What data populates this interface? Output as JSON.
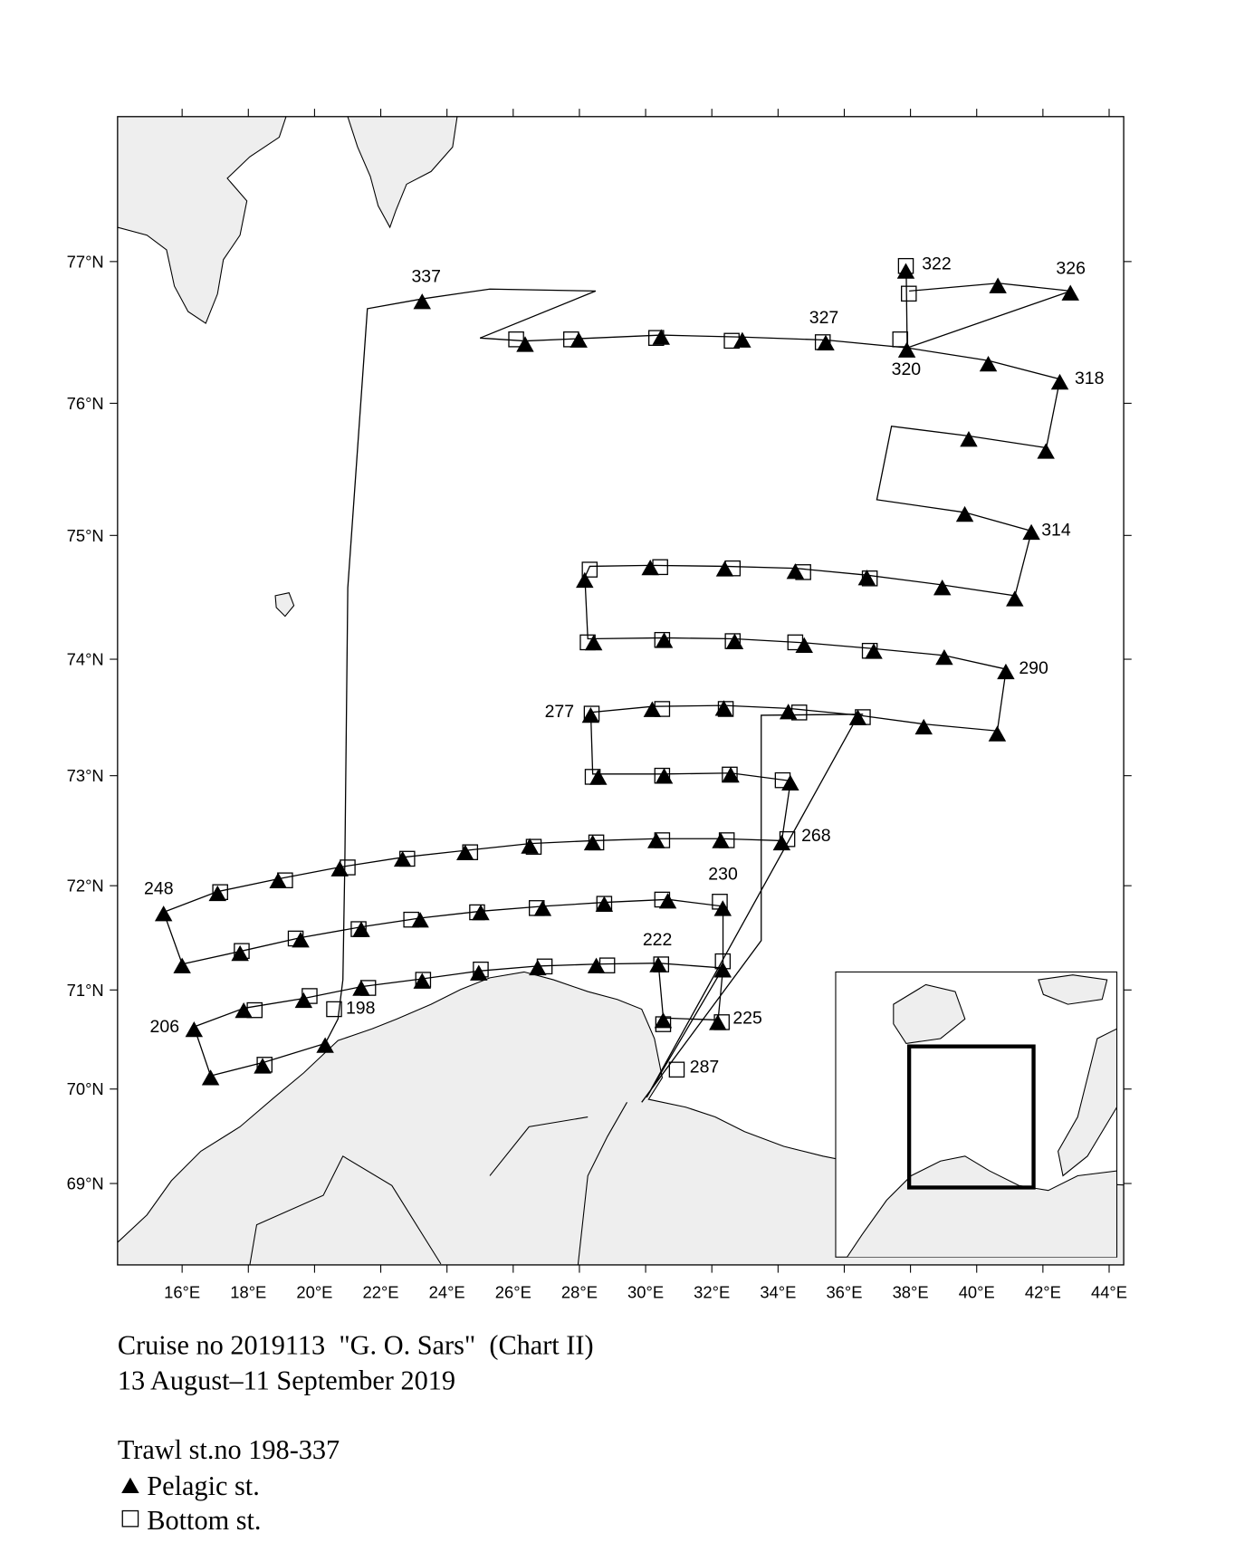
{
  "map": {
    "type": "map",
    "xlim": [
      14.05,
      44.44
    ],
    "ylim": [
      68.1,
      77.95
    ],
    "xticks": [
      {
        "value": 16,
        "label": "16°E"
      },
      {
        "value": 18,
        "label": "18°E"
      },
      {
        "value": 20,
        "label": "20°E"
      },
      {
        "value": 22,
        "label": "22°E"
      },
      {
        "value": 24,
        "label": "24°E"
      },
      {
        "value": 26,
        "label": "26°E"
      },
      {
        "value": 28,
        "label": "28°E"
      },
      {
        "value": 30,
        "label": "30°E"
      },
      {
        "value": 32,
        "label": "32°E"
      },
      {
        "value": 34,
        "label": "34°E"
      },
      {
        "value": 36,
        "label": "36°E"
      },
      {
        "value": 38,
        "label": "38°E"
      },
      {
        "value": 40,
        "label": "40°E"
      },
      {
        "value": 42,
        "label": "42°E"
      },
      {
        "value": 44,
        "label": "44°E"
      }
    ],
    "yticks": [
      {
        "value": 69,
        "label": "69°N"
      },
      {
        "value": 70,
        "label": "70°N"
      },
      {
        "value": 71,
        "label": "71°N"
      },
      {
        "value": 72,
        "label": "72°N"
      },
      {
        "value": 73,
        "label": "73°N"
      },
      {
        "value": 74,
        "label": "74°N"
      },
      {
        "value": 75,
        "label": "75°N"
      },
      {
        "value": 76,
        "label": "76°N"
      },
      {
        "value": 77,
        "label": "77°N"
      }
    ],
    "pelagic": [
      [
        23.25,
        76.72
      ],
      [
        26.36,
        76.42
      ],
      [
        27.98,
        76.45
      ],
      [
        30.47,
        76.47
      ],
      [
        32.92,
        76.45
      ],
      [
        35.44,
        76.43
      ],
      [
        37.89,
        76.38
      ],
      [
        40.35,
        76.28
      ],
      [
        42.51,
        76.15
      ],
      [
        37.86,
        76.93
      ],
      [
        40.64,
        76.83
      ],
      [
        42.83,
        76.78
      ],
      [
        39.76,
        75.73
      ],
      [
        42.09,
        75.64
      ],
      [
        39.64,
        75.16
      ],
      [
        41.65,
        75.02
      ],
      [
        28.16,
        74.64
      ],
      [
        30.14,
        74.74
      ],
      [
        32.39,
        74.73
      ],
      [
        34.52,
        74.71
      ],
      [
        36.68,
        74.66
      ],
      [
        38.96,
        74.58
      ],
      [
        41.15,
        74.49
      ],
      [
        28.43,
        74.13
      ],
      [
        30.56,
        74.15
      ],
      [
        32.69,
        74.14
      ],
      [
        34.79,
        74.11
      ],
      [
        36.89,
        74.06
      ],
      [
        39.02,
        74.01
      ],
      [
        40.88,
        73.89
      ],
      [
        28.34,
        73.52
      ],
      [
        30.2,
        73.57
      ],
      [
        32.36,
        73.58
      ],
      [
        34.31,
        73.55
      ],
      [
        36.41,
        73.5
      ],
      [
        38.4,
        73.42
      ],
      [
        40.62,
        73.36
      ],
      [
        28.57,
        72.98
      ],
      [
        30.56,
        72.99
      ],
      [
        32.57,
        73.0
      ],
      [
        34.37,
        72.93
      ],
      [
        34.11,
        72.39
      ],
      [
        32.27,
        72.41
      ],
      [
        30.32,
        72.41
      ],
      [
        28.4,
        72.39
      ],
      [
        26.5,
        72.36
      ],
      [
        24.55,
        72.3
      ],
      [
        22.66,
        72.24
      ],
      [
        20.76,
        72.15
      ],
      [
        18.9,
        72.04
      ],
      [
        17.07,
        71.92
      ],
      [
        15.44,
        71.73
      ],
      [
        16.0,
        71.23
      ],
      [
        17.75,
        71.35
      ],
      [
        19.58,
        71.48
      ],
      [
        21.41,
        71.58
      ],
      [
        23.19,
        71.67
      ],
      [
        25.02,
        71.74
      ],
      [
        26.89,
        71.78
      ],
      [
        28.75,
        71.82
      ],
      [
        30.67,
        71.85
      ],
      [
        32.33,
        71.78
      ],
      [
        32.33,
        71.19
      ],
      [
        30.38,
        71.24
      ],
      [
        28.51,
        71.23
      ],
      [
        26.74,
        71.21
      ],
      [
        24.96,
        71.16
      ],
      [
        23.25,
        71.08
      ],
      [
        21.41,
        71.01
      ],
      [
        19.67,
        70.89
      ],
      [
        17.86,
        70.79
      ],
      [
        16.36,
        70.6
      ],
      [
        20.32,
        70.44
      ],
      [
        16.86,
        70.11
      ],
      [
        18.43,
        70.23
      ],
      [
        30.53,
        70.69
      ],
      [
        32.18,
        70.67
      ]
    ],
    "bottom": [
      [
        26.09,
        76.46
      ],
      [
        27.75,
        76.46
      ],
      [
        30.32,
        76.47
      ],
      [
        32.6,
        76.45
      ],
      [
        35.35,
        76.44
      ],
      [
        37.69,
        76.46
      ],
      [
        37.86,
        76.97
      ],
      [
        37.95,
        76.78
      ],
      [
        28.31,
        74.73
      ],
      [
        30.44,
        74.75
      ],
      [
        32.63,
        74.74
      ],
      [
        34.76,
        74.71
      ],
      [
        36.77,
        74.66
      ],
      [
        28.25,
        74.14
      ],
      [
        30.5,
        74.16
      ],
      [
        32.63,
        74.15
      ],
      [
        34.52,
        74.14
      ],
      [
        36.77,
        74.07
      ],
      [
        28.37,
        73.54
      ],
      [
        30.5,
        73.58
      ],
      [
        32.42,
        73.58
      ],
      [
        34.64,
        73.55
      ],
      [
        36.56,
        73.51
      ],
      [
        28.4,
        72.99
      ],
      [
        30.5,
        73.0
      ],
      [
        32.54,
        73.01
      ],
      [
        34.14,
        72.96
      ],
      [
        34.28,
        72.43
      ],
      [
        32.45,
        72.42
      ],
      [
        30.5,
        72.42
      ],
      [
        28.51,
        72.4
      ],
      [
        26.62,
        72.36
      ],
      [
        24.7,
        72.31
      ],
      [
        22.8,
        72.25
      ],
      [
        21.0,
        72.17
      ],
      [
        19.11,
        72.05
      ],
      [
        17.15,
        71.94
      ],
      [
        17.8,
        71.38
      ],
      [
        19.43,
        71.5
      ],
      [
        21.33,
        71.59
      ],
      [
        22.92,
        71.68
      ],
      [
        24.91,
        71.75
      ],
      [
        26.71,
        71.79
      ],
      [
        28.75,
        71.83
      ],
      [
        30.5,
        71.87
      ],
      [
        32.24,
        71.85
      ],
      [
        32.33,
        71.28
      ],
      [
        30.47,
        71.25
      ],
      [
        28.84,
        71.24
      ],
      [
        26.95,
        71.23
      ],
      [
        25.02,
        71.2
      ],
      [
        23.28,
        71.1
      ],
      [
        21.62,
        71.02
      ],
      [
        19.85,
        70.94
      ],
      [
        18.19,
        70.8
      ],
      [
        20.59,
        70.81
      ],
      [
        18.49,
        70.25
      ],
      [
        30.53,
        70.66
      ],
      [
        32.3,
        70.68
      ],
      [
        30.94,
        70.2
      ]
    ],
    "station_labels": [
      "337",
      "322",
      "326",
      "327",
      "320",
      "318",
      "314",
      "290",
      "277",
      "268",
      "230",
      "248",
      "222",
      "206",
      "198",
      "225",
      "287"
    ],
    "caption": {
      "title": "Cruise no 2019113  \"G. O. Sars\"  (Chart II)",
      "dates": "13 August–11 September 2019",
      "range": "Trawl st.no 198-337",
      "pelagic": "Pelagic st.",
      "bottom": "Bottom st."
    }
  }
}
